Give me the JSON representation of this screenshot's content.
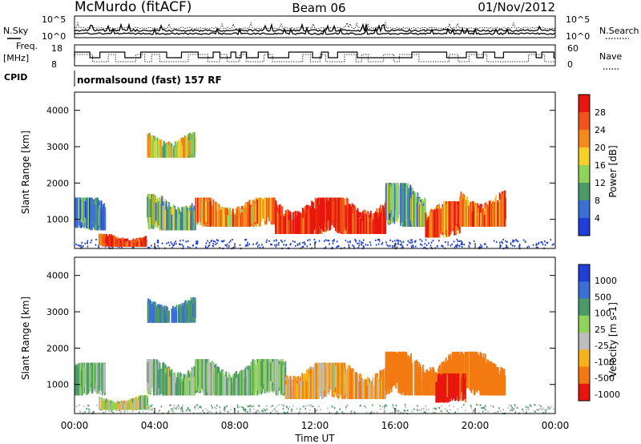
{
  "header": {
    "station": "McMurdo (fitACF)",
    "beam": "Beam 06",
    "date": "01/Nov/2012"
  },
  "top_panels": {
    "nsky_label": "N.Sky",
    "nsearch_label": "N.Search",
    "noise_ticks": [
      "10^5",
      "10^0"
    ],
    "freq_label_1": "Freq.",
    "freq_label_2": "[MHz]",
    "freq_ticks": [
      "18",
      "8"
    ],
    "nave_label": "Nave",
    "nave_ticks": [
      "60",
      "0"
    ],
    "cpid_label": "CPID",
    "cpid_text": "normalsound (fast) 157 RF"
  },
  "colors": {
    "power": [
      "#1f3fd8",
      "#3a6fd6",
      "#4c9a6a",
      "#8fd35a",
      "#f6d02a",
      "#f48a1c",
      "#f2531a",
      "#e8160f"
    ],
    "velocity": [
      "#1f3fd8",
      "#3a6fd6",
      "#4c9a6a",
      "#8fd35a",
      "#bdbdbd",
      "#f6b21c",
      "#f27a10",
      "#e8160f"
    ],
    "ground_scatter": "#bdbdbd",
    "nsky_line": "#000000"
  },
  "chart_data": [
    {
      "type": "heatmap",
      "name": "power",
      "xlabel": "",
      "ylabel": "Slant Range [km]",
      "xlim": [
        0,
        24
      ],
      "ylim": [
        200,
        4500
      ],
      "y_ticks": [
        1000,
        2000,
        3000,
        4000
      ],
      "colorbar": {
        "label": "Power [dB]",
        "tick_labels": [
          "28",
          "24",
          "20",
          "16",
          "12",
          "8",
          "4"
        ],
        "range": [
          0,
          32
        ]
      },
      "regions": [
        {
          "t0": 1.2,
          "t1": 3.6,
          "r0": 250,
          "r1": 600,
          "level": 28
        },
        {
          "t0": 0.0,
          "t1": 1.5,
          "r0": 700,
          "r1": 1600,
          "level": 8
        },
        {
          "t0": 3.6,
          "t1": 6.0,
          "r0": 700,
          "r1": 1700,
          "level": 12
        },
        {
          "t0": 3.6,
          "t1": 6.0,
          "r0": 2700,
          "r1": 3400,
          "level": 16
        },
        {
          "t0": 6.0,
          "t1": 10.0,
          "r0": 800,
          "r1": 1600,
          "level": 22
        },
        {
          "t0": 10.0,
          "t1": 15.5,
          "r0": 600,
          "r1": 1600,
          "level": 30
        },
        {
          "t0": 15.5,
          "t1": 17.5,
          "r0": 800,
          "r1": 2000,
          "level": 10
        },
        {
          "t0": 17.5,
          "t1": 19.2,
          "r0": 500,
          "r1": 1500,
          "level": 26
        },
        {
          "t0": 19.2,
          "t1": 21.5,
          "r0": 800,
          "r1": 1800,
          "level": 24
        }
      ]
    },
    {
      "type": "heatmap",
      "name": "velocity",
      "xlabel": "Time UT",
      "ylabel": "Slant Range [km]",
      "xlim": [
        0,
        24
      ],
      "ylim": [
        200,
        4500
      ],
      "x_ticks": [
        "00:00",
        "04:00",
        "08:00",
        "12:00",
        "16:00",
        "20:00",
        "00:00"
      ],
      "y_ticks": [
        1000,
        2000,
        3000,
        4000
      ],
      "colorbar": {
        "label": "Velocity [m s-1]",
        "tick_labels": [
          "1000",
          "500",
          "100",
          "25",
          "-25",
          "-100",
          "-500",
          "-1000"
        ]
      },
      "regions": [
        {
          "t0": 0.0,
          "t1": 1.5,
          "r0": 700,
          "r1": 1600,
          "v": 100
        },
        {
          "t0": 1.2,
          "t1": 3.6,
          "r0": 300,
          "r1": 700,
          "v": 0
        },
        {
          "t0": 3.6,
          "t1": 6.0,
          "r0": 700,
          "r1": 1700,
          "v": 100
        },
        {
          "t0": 3.6,
          "t1": 6.0,
          "r0": 2700,
          "r1": 3400,
          "v": 500
        },
        {
          "t0": 6.0,
          "t1": 10.5,
          "r0": 700,
          "r1": 1700,
          "v": 100
        },
        {
          "t0": 10.5,
          "t1": 15.5,
          "r0": 600,
          "r1": 1600,
          "v": -100
        },
        {
          "t0": 15.5,
          "t1": 21.5,
          "r0": 700,
          "r1": 1900,
          "v": -300
        },
        {
          "t0": 18.0,
          "t1": 19.5,
          "r0": 500,
          "r1": 1300,
          "v": -600
        }
      ]
    }
  ]
}
